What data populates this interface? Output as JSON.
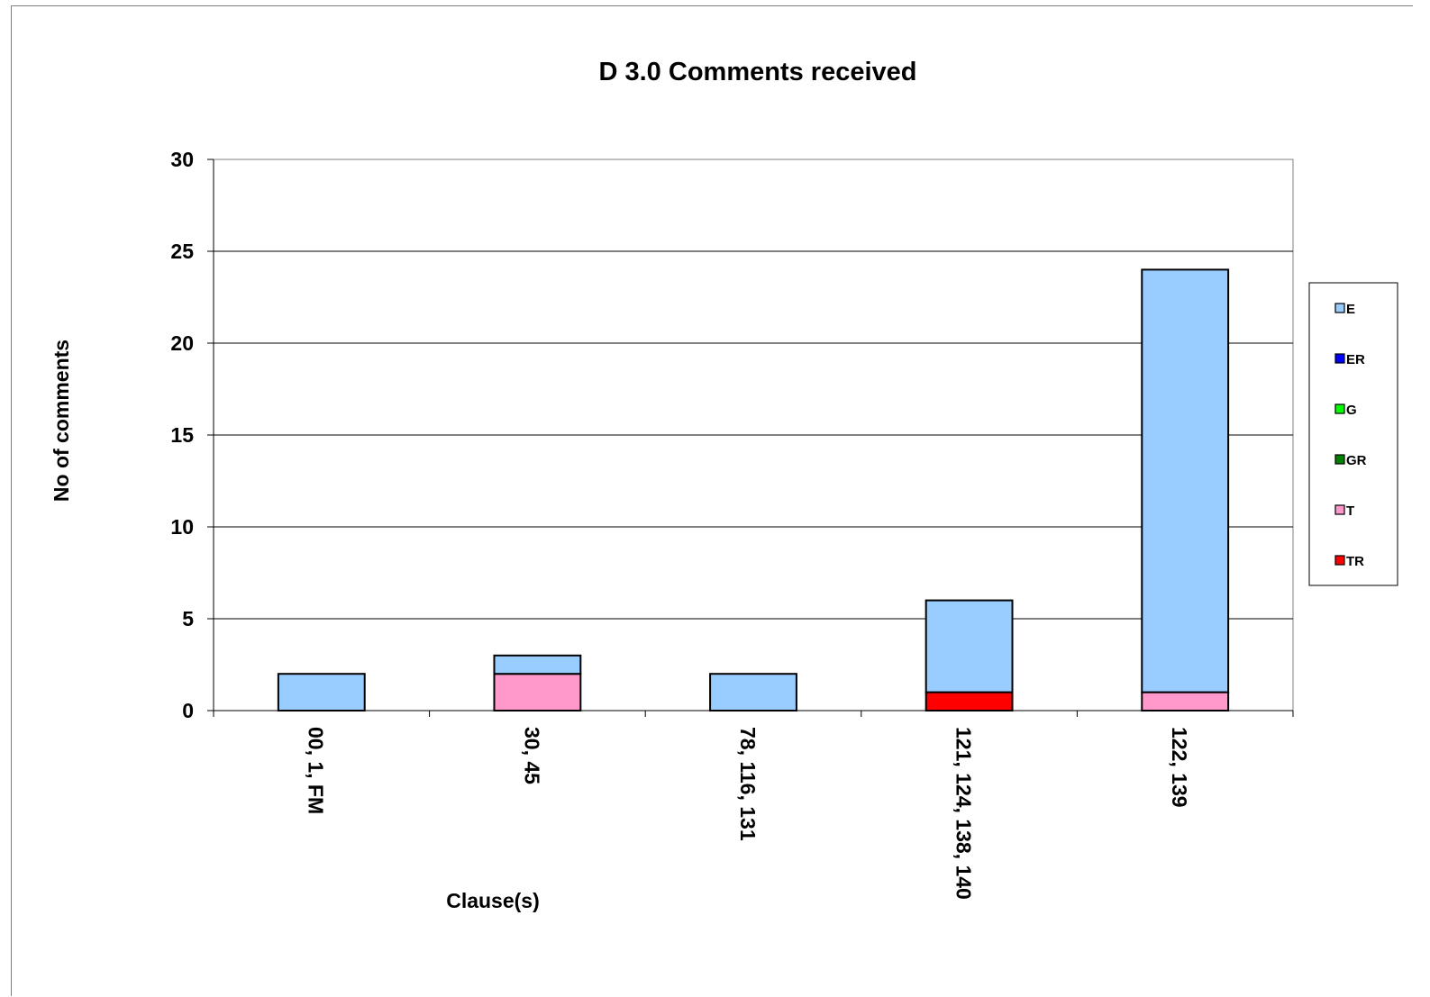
{
  "chart_data": {
    "type": "bar",
    "stacked": true,
    "title": "D 3.0 Comments received",
    "xlabel": "Clause(s)",
    "ylabel": "No of comments",
    "ylim": [
      0,
      30
    ],
    "yticks": [
      0,
      5,
      10,
      15,
      20,
      25,
      30
    ],
    "grid": true,
    "legend_position": "right",
    "categories": [
      "00, 1, FM",
      "30, 45",
      "78, 116, 131",
      "121, 124, 138, 140",
      "122, 139"
    ],
    "series": [
      {
        "name": "TR",
        "color": "#ff0000",
        "values": [
          0,
          0,
          0,
          1,
          0
        ]
      },
      {
        "name": "T",
        "color": "#ff99cc",
        "values": [
          0,
          2,
          0,
          0,
          1
        ]
      },
      {
        "name": "GR",
        "color": "#008000",
        "values": [
          0,
          0,
          0,
          0,
          0
        ]
      },
      {
        "name": "G",
        "color": "#00ff00",
        "values": [
          0,
          0,
          0,
          0,
          0
        ]
      },
      {
        "name": "ER",
        "color": "#0000ff",
        "values": [
          0,
          0,
          0,
          0,
          0
        ]
      },
      {
        "name": "E",
        "color": "#99ccff",
        "values": [
          2,
          1,
          2,
          5,
          23
        ]
      }
    ],
    "legend_order": [
      "E",
      "ER",
      "G",
      "GR",
      "T",
      "TR"
    ]
  }
}
